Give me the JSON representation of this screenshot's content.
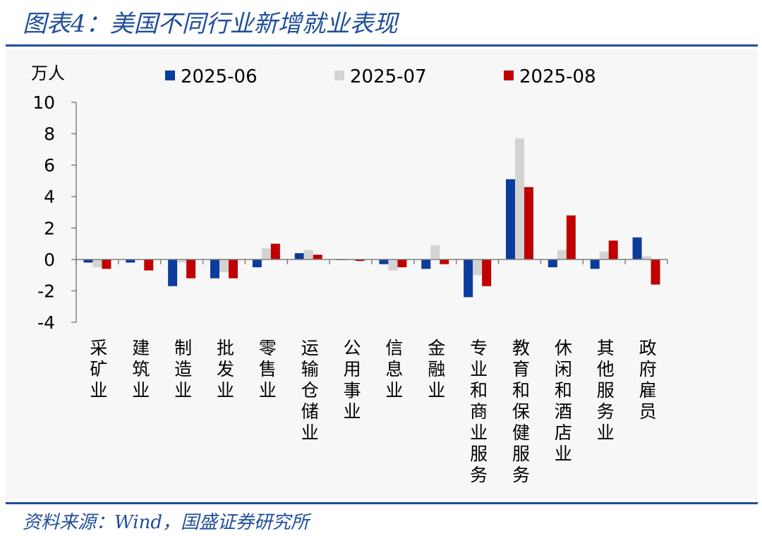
{
  "header": {
    "title": "图表4：美国不同行业新增就业表现"
  },
  "footer": {
    "source": "资料来源：Wind，国盛证券研究所"
  },
  "colors": {
    "title": "#1f4e9a",
    "series_2025_06": "#0b3c9c",
    "series_2025_07": "#d3d3d3",
    "series_2025_08": "#c00000",
    "axis": "#808080",
    "panel_background": "#f7f7f7"
  },
  "chart_data": {
    "type": "bar",
    "title": "",
    "xlabel": "",
    "ylabel": "万人",
    "ylim": [
      -4,
      10
    ],
    "yticks": [
      10,
      8,
      6,
      4,
      2,
      0,
      -2,
      -4
    ],
    "grid": false,
    "legend": "top",
    "categories": [
      "采矿业",
      "建筑业",
      "制造业",
      "批发业",
      "零售业",
      "运输仓储业",
      "公用事业",
      "信息业",
      "金融业",
      "专业和商业服务",
      "教育和保健服务",
      "休闲和酒店业",
      "其他服务业",
      "政府雇员"
    ],
    "series": [
      {
        "name": "2025-06",
        "color": "#0b3c9c",
        "values": [
          -0.2,
          -0.2,
          -1.7,
          -1.2,
          -0.5,
          0.4,
          0.0,
          -0.3,
          -0.6,
          -2.4,
          5.1,
          -0.5,
          -0.6,
          1.4
        ]
      },
      {
        "name": "2025-07",
        "color": "#d3d3d3",
        "values": [
          -0.5,
          0.0,
          -0.2,
          -0.8,
          0.7,
          0.6,
          0.0,
          -0.7,
          0.9,
          -1.0,
          7.7,
          0.6,
          0.5,
          0.2
        ]
      },
      {
        "name": "2025-08",
        "color": "#c00000",
        "values": [
          -0.6,
          -0.7,
          -1.2,
          -1.2,
          1.0,
          0.3,
          -0.1,
          -0.5,
          -0.3,
          -1.7,
          4.6,
          2.8,
          1.2,
          -1.6
        ]
      }
    ]
  }
}
